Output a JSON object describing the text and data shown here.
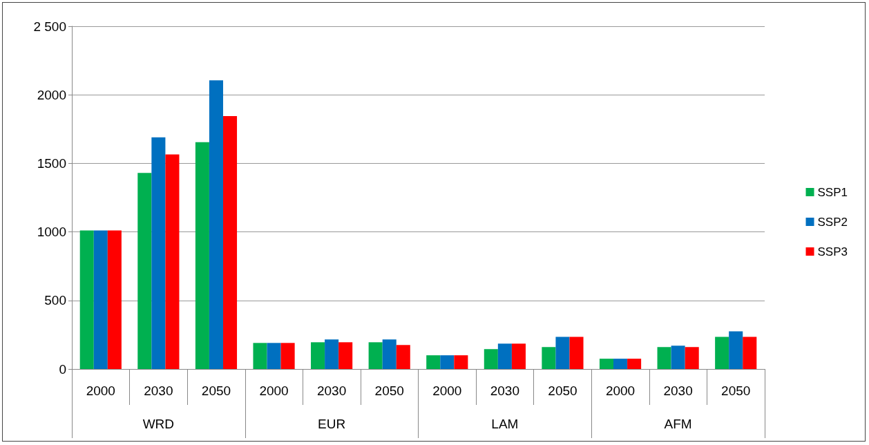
{
  "chart_data": {
    "type": "bar",
    "categories": [
      "2000",
      "2030",
      "2050",
      "2000",
      "2030",
      "2050",
      "2000",
      "2030",
      "2050",
      "2000",
      "2030",
      "2050"
    ],
    "annotations": [
      "WRD",
      "EUR",
      "LAM",
      "AFM"
    ],
    "series": [
      {
        "name": "SSP1",
        "color": "#00b050",
        "values": [
          1010,
          1430,
          1655,
          190,
          195,
          195,
          100,
          145,
          160,
          75,
          160,
          235
        ]
      },
      {
        "name": "SSP2",
        "color": "#0070c0",
        "values": [
          1010,
          1690,
          2105,
          190,
          215,
          215,
          100,
          185,
          235,
          75,
          170,
          275
        ]
      },
      {
        "name": "SSP3",
        "color": "#ff0000",
        "values": [
          1010,
          1565,
          1845,
          190,
          195,
          175,
          100,
          185,
          235,
          75,
          160,
          235
        ]
      }
    ],
    "ylim": [
      0,
      2500
    ],
    "yticks": [
      0,
      500,
      1000,
      1500,
      2000,
      {
        "value": 2500,
        "label": "2 500"
      }
    ],
    "grid": "y",
    "legend": "right"
  }
}
